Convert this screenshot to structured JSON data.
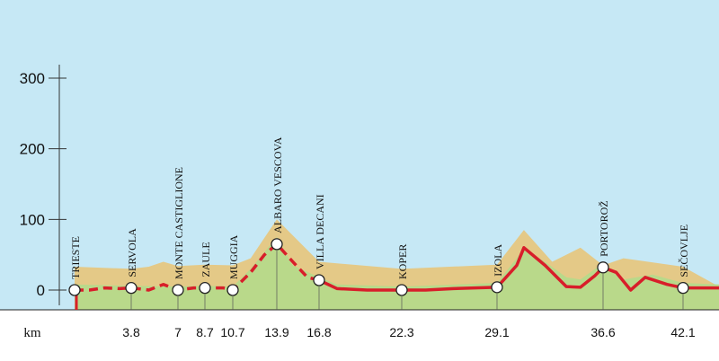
{
  "chart_data": {
    "type": "area",
    "title": "",
    "xlabel": "km",
    "ylabel": "",
    "ylim": [
      0,
      300
    ],
    "y_ticks": [
      0,
      100,
      200,
      300
    ],
    "x_ticks": [
      "3.8",
      "7",
      "8.7",
      "10.7",
      "13.9",
      "16.8",
      "22.3",
      "29.1",
      "36.6",
      "42.1"
    ],
    "grid": false,
    "colors": {
      "sky": "#c6e8f5",
      "route_line": "#d81e2a",
      "terrain_background": "#e4c987",
      "terrain_foreground": "#b9d98a",
      "axis_band": "#ffffff"
    },
    "places": [
      {
        "name": "TRIESTE",
        "km": 0,
        "elevation": 0
      },
      {
        "name": "SERVOLA",
        "km": 3.8,
        "elevation": 3
      },
      {
        "name": "MONTE CASTIGLIONE",
        "km": 7,
        "elevation": 0
      },
      {
        "name": "ZAULE",
        "km": 8.7,
        "elevation": 3
      },
      {
        "name": "MUGGIA",
        "km": 10.7,
        "elevation": 0
      },
      {
        "name": "ALBARO VESCOVA",
        "km": 13.9,
        "elevation": 65
      },
      {
        "name": "VILLA DECANI",
        "km": 16.8,
        "elevation": 14
      },
      {
        "name": "KOPER",
        "km": 22.3,
        "elevation": 0
      },
      {
        "name": "IZOLA",
        "km": 29.1,
        "elevation": 4
      },
      {
        "name": "PORTOROŽ",
        "km": 36.6,
        "elevation": 32
      },
      {
        "name": "SEČOVLJE",
        "km": 42.1,
        "elevation": 3
      }
    ],
    "series": [
      {
        "x": [
          0,
          1,
          2,
          3,
          3.8,
          5,
          6,
          7,
          8,
          8.7,
          10,
          10.7,
          12,
          13,
          13.9,
          15,
          16,
          16.8,
          18,
          20,
          22.3,
          24,
          26,
          29.1,
          30.5,
          31,
          32.5,
          34,
          35,
          36,
          36.6,
          37.5,
          38.5,
          39.5,
          41,
          42.1,
          43,
          44
        ],
        "y": [
          0,
          0,
          3,
          2,
          3,
          0,
          8,
          0,
          3,
          3,
          3,
          0,
          25,
          50,
          65,
          40,
          18,
          14,
          2,
          0,
          0,
          0,
          2,
          4,
          35,
          60,
          35,
          5,
          4,
          20,
          32,
          25,
          0,
          18,
          8,
          3,
          3,
          3
        ]
      }
    ],
    "terrain_background": {
      "x": [
        0,
        3.8,
        5,
        6,
        7,
        8.7,
        10.7,
        12,
        13.9,
        16.8,
        22.3,
        29.1,
        31,
        33,
        35,
        36.6,
        38,
        42.1,
        44
      ],
      "y": [
        33,
        30,
        33,
        40,
        34,
        36,
        35,
        45,
        100,
        40,
        30,
        36,
        85,
        40,
        60,
        35,
        45,
        33,
        5
      ]
    },
    "terrain_foreground": {
      "x": [
        0,
        3.8,
        7,
        8.7,
        10.7,
        12,
        13.9,
        15,
        16.8,
        18,
        22.3,
        29.1,
        31,
        32.5,
        34,
        35,
        36.6,
        38,
        40,
        42.1,
        44
      ],
      "y": [
        8,
        6,
        5,
        6,
        5,
        30,
        75,
        35,
        18,
        8,
        5,
        10,
        58,
        40,
        18,
        15,
        38,
        15,
        22,
        10,
        8
      ]
    }
  }
}
